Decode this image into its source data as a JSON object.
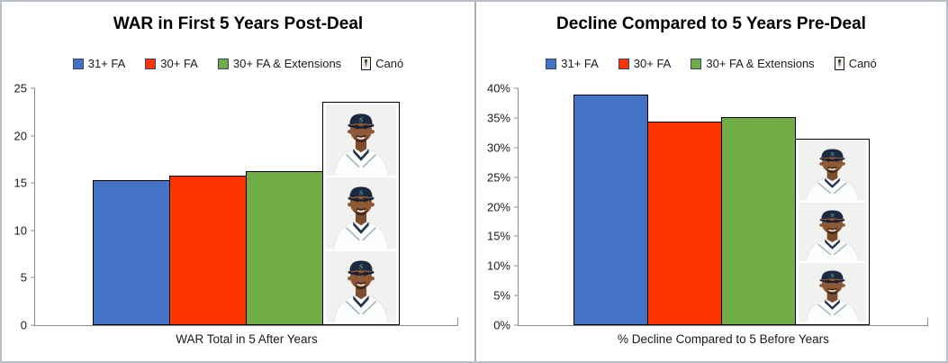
{
  "figure": {
    "background": "#ffffff",
    "border_color": "#b9c0c9",
    "divider_color": "#a9aeb6",
    "axis_color": "#8c8c8c",
    "text_color": "#1a1a1a",
    "title_color": "#000000",
    "bar_border_color": "#000000"
  },
  "icons": {
    "cano_headshot": "robinson-cano-headshot-navy-cap-teal-s-white-jersey"
  },
  "chart_data": [
    {
      "type": "bar",
      "title": "WAR in First 5 Years Post-Deal",
      "xlabel": "WAR Total in 5 After Years",
      "ylabel": "",
      "categories": [
        "31+ FA",
        "30+ FA",
        "30+ FA & Extensions",
        "Canó"
      ],
      "values": [
        15.3,
        15.8,
        16.3,
        23.6
      ],
      "ylim": [
        0,
        25
      ],
      "ytick_step": 5,
      "ytick_suffix": "",
      "grid": false,
      "legend_position": "top-center",
      "bar_colors": [
        "#4472C4",
        "#FF3300",
        "#70AD47",
        "photo"
      ],
      "photo_bar_index": 3,
      "photo_count": 3
    },
    {
      "type": "bar",
      "title": "Decline Compared to 5 Years Pre-Deal",
      "xlabel": "% Decline Compared to 5 Before Years",
      "ylabel": "",
      "categories": [
        "31+ FA",
        "30+ FA",
        "30+ FA & Extensions",
        "Canó"
      ],
      "values": [
        39.0,
        34.4,
        35.1,
        31.5
      ],
      "ylim": [
        0,
        40
      ],
      "ytick_step": 5,
      "ytick_suffix": "%",
      "grid": false,
      "legend_position": "top-center",
      "bar_colors": [
        "#4472C4",
        "#FF3300",
        "#70AD47",
        "photo"
      ],
      "photo_bar_index": 3,
      "photo_count": 3
    }
  ]
}
